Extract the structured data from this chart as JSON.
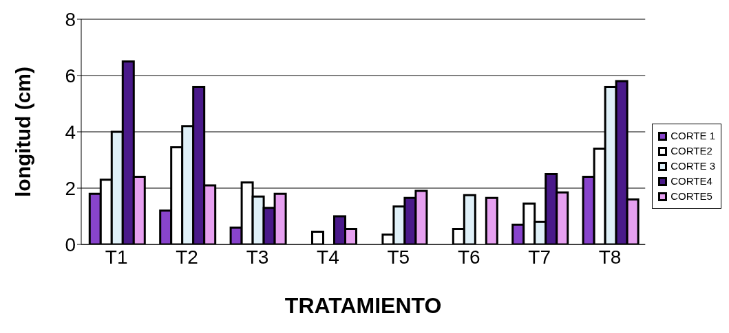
{
  "chart_data": {
    "type": "bar",
    "xlabel": "TRATAMIENTO",
    "ylabel": "longitud (cm)",
    "categories": [
      "T1",
      "T2",
      "T3",
      "T4",
      "T5",
      "T6",
      "T7",
      "T8"
    ],
    "series": [
      {
        "name": "CORTE 1",
        "color": "#8844cc",
        "values": [
          1.8,
          1.2,
          0.6,
          0,
          0,
          0,
          0.7,
          2.4
        ]
      },
      {
        "name": "CORTE2",
        "color": "#ffffff",
        "values": [
          2.3,
          3.45,
          2.2,
          0.45,
          0.35,
          0.55,
          1.45,
          3.4
        ]
      },
      {
        "name": "CORTE 3",
        "color": "#dff0f8",
        "values": [
          4.0,
          4.2,
          1.7,
          0,
          1.35,
          1.75,
          0.8,
          5.6
        ]
      },
      {
        "name": "CORTE4",
        "color": "#4a1a8a",
        "values": [
          6.5,
          5.6,
          1.3,
          1.0,
          1.65,
          0,
          2.5,
          5.8
        ]
      },
      {
        "name": "CORTE5",
        "color": "#e6a0f0",
        "values": [
          2.4,
          2.1,
          1.8,
          0.55,
          1.9,
          1.65,
          1.85,
          1.6
        ]
      }
    ],
    "ylim": [
      0,
      8
    ],
    "yticks": [
      0,
      2,
      4,
      6,
      8
    ],
    "grid": "y",
    "legend": "right"
  }
}
